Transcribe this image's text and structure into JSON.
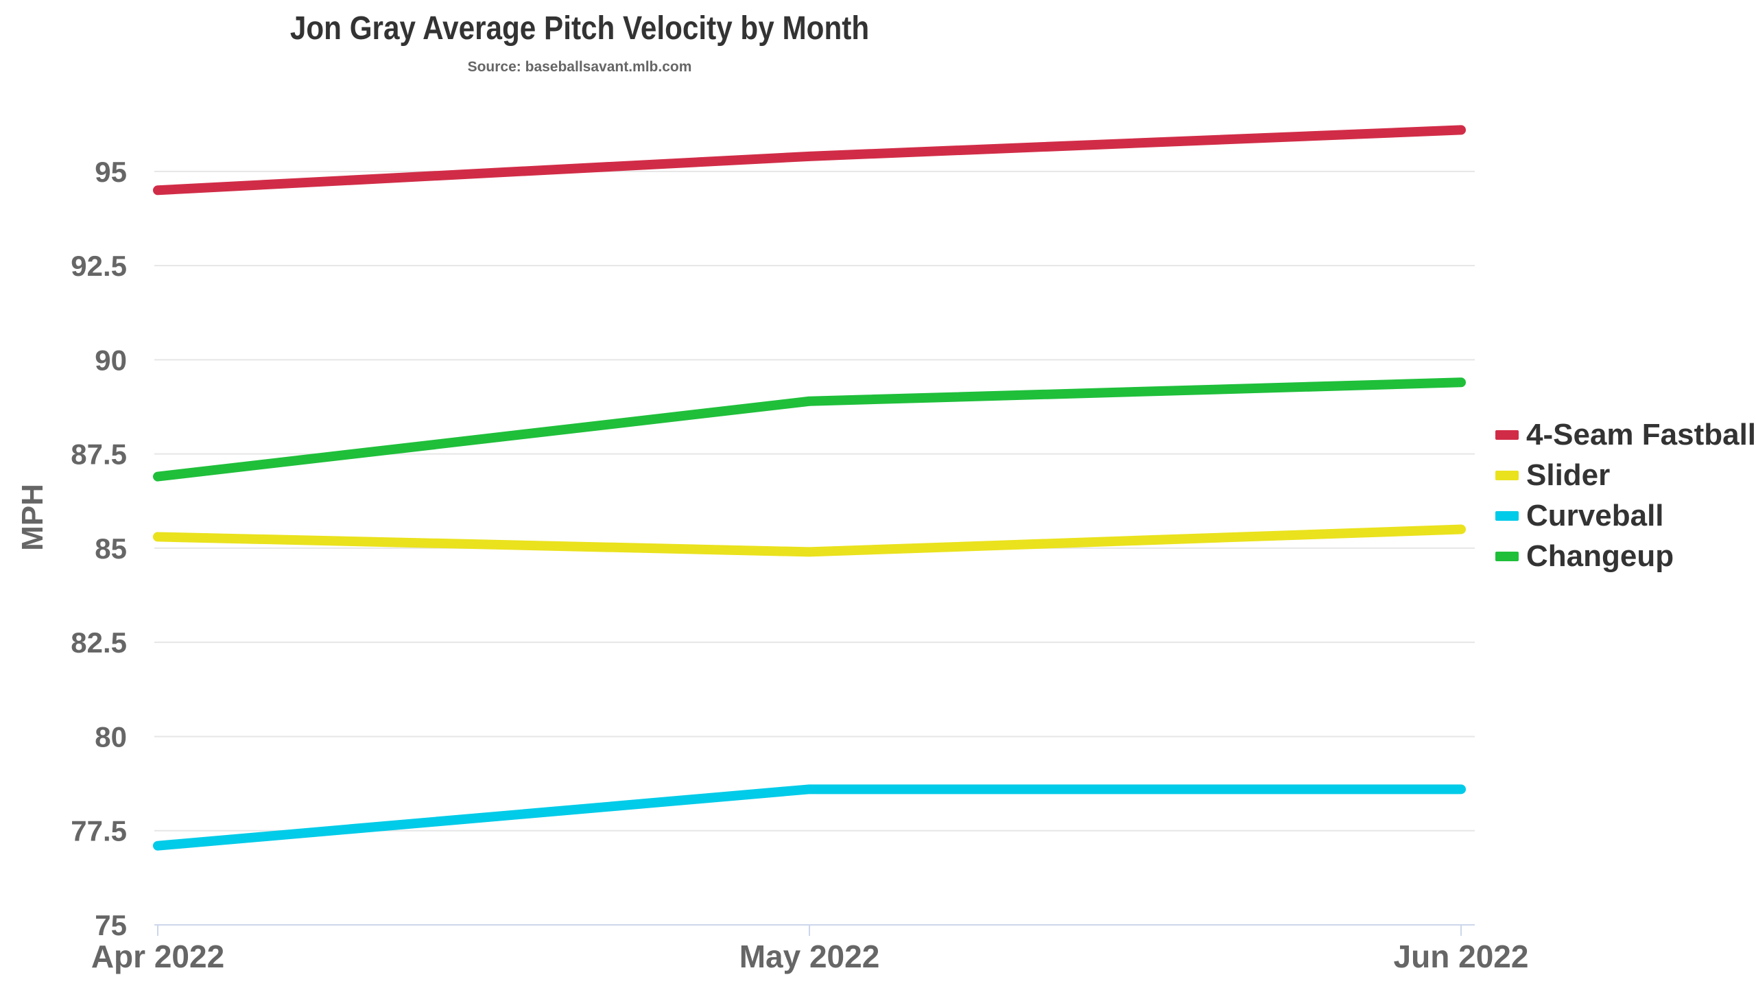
{
  "chart_data": {
    "type": "line",
    "title": "Jon Gray Average Pitch Velocity by Month",
    "subtitle": "Source: baseballsavant.mlb.com",
    "xlabel": "",
    "ylabel": "MPH",
    "categories": [
      "Apr 2022",
      "May 2022",
      "Jun 2022"
    ],
    "ylim": [
      75,
      97
    ],
    "yticks": [
      75,
      77.5,
      80,
      82.5,
      85,
      87.5,
      90,
      92.5,
      95
    ],
    "grid": true,
    "legend_position": "right",
    "series": [
      {
        "name": "4-Seam Fastball",
        "color": "#d12c47",
        "values": [
          94.5,
          95.4,
          96.1
        ]
      },
      {
        "name": "Slider",
        "color": "#eae21d",
        "values": [
          85.3,
          84.9,
          85.5
        ]
      },
      {
        "name": "Curveball",
        "color": "#00cbe8",
        "values": [
          77.1,
          78.6,
          78.6
        ]
      },
      {
        "name": "Changeup",
        "color": "#1fbf3a",
        "values": [
          86.9,
          88.9,
          89.4
        ]
      }
    ]
  }
}
